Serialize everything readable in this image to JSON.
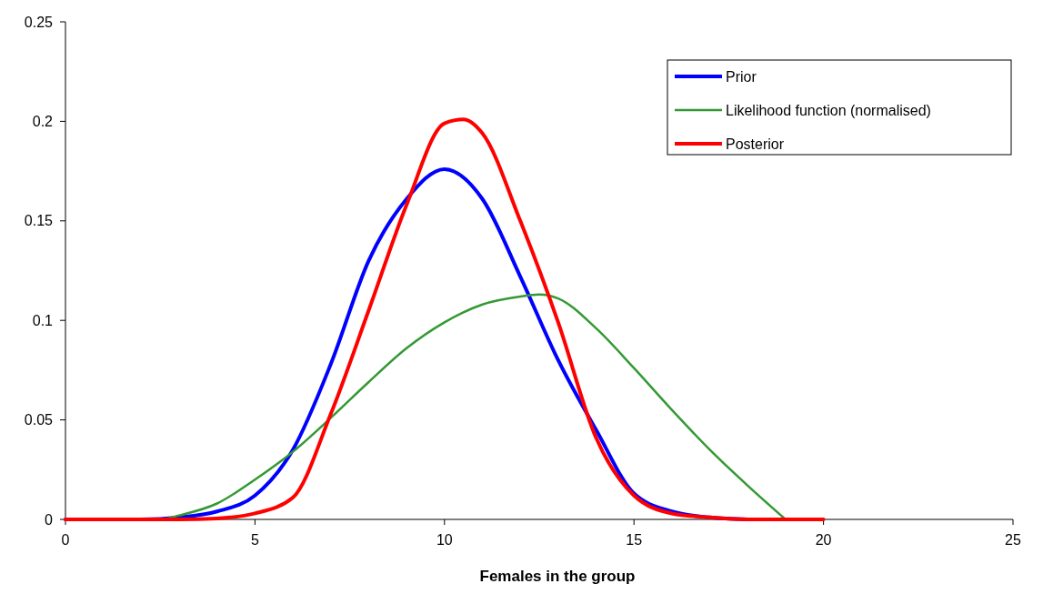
{
  "chart_data": {
    "type": "line",
    "xlabel": "Females in the group",
    "xlim": [
      0,
      25
    ],
    "xticks": [
      0,
      5,
      10,
      15,
      20,
      25
    ],
    "ylim": [
      0,
      0.25
    ],
    "yticks": [
      0,
      0.05,
      0.1,
      0.15,
      0.2,
      0.25
    ],
    "grid": false,
    "legend": "top right",
    "line_style": "solid",
    "series": [
      {
        "name": "Prior",
        "color": "#0000ff",
        "x": [
          0,
          1,
          2,
          3,
          4,
          5,
          6,
          7,
          8,
          9,
          10,
          11,
          12,
          13,
          14,
          15,
          16,
          17,
          18
        ],
        "values": [
          0,
          0,
          0,
          0.001,
          0.004,
          0.012,
          0.035,
          0.078,
          0.13,
          0.161,
          0.176,
          0.161,
          0.122,
          0.08,
          0.045,
          0.013,
          0.004,
          0.001,
          0
        ]
      },
      {
        "name": "Likelihood function (normalised)",
        "color": "#339933",
        "x": [
          2,
          2.5,
          3,
          4,
          5,
          6,
          7,
          8,
          9,
          10,
          11,
          12,
          12.5,
          13,
          14,
          15,
          16,
          17,
          18,
          19
        ],
        "values": [
          0,
          0,
          0.002,
          0.008,
          0.02,
          0.034,
          0.051,
          0.069,
          0.086,
          0.099,
          0.108,
          0.112,
          0.113,
          0.111,
          0.096,
          0.076,
          0.055,
          0.035,
          0.017,
          0
        ]
      },
      {
        "name": "Posterior",
        "color": "#ff0000",
        "x": [
          0,
          1,
          2,
          3,
          4,
          5,
          6,
          7,
          8,
          9,
          10,
          10.5,
          11,
          12,
          13,
          14,
          15,
          16,
          17,
          18,
          19,
          20
        ],
        "values": [
          0,
          0,
          0,
          0,
          0.0005,
          0.003,
          0.011,
          0.053,
          0.105,
          0.158,
          0.199,
          0.201,
          0.194,
          0.15,
          0.099,
          0.041,
          0.012,
          0.003,
          0.001,
          0,
          0,
          0
        ]
      }
    ]
  }
}
